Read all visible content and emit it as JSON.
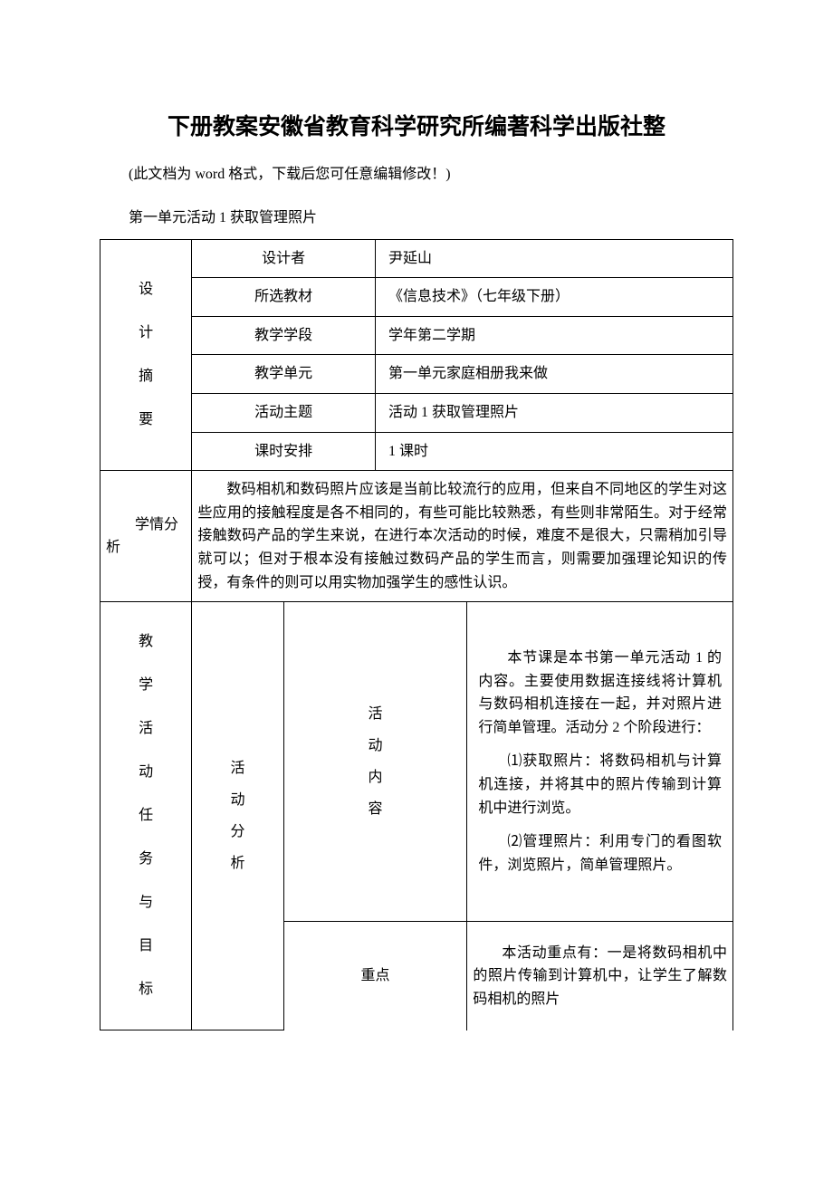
{
  "title": "下册教案安徽省教育科学研究所编著科学出版社整",
  "note_prefix": "(此文档为 ",
  "note_word": "word",
  "note_suffix": " 格式，下载后您可任意编辑修改！)",
  "subtitle": "第一单元活动 1 获取管理照片",
  "summary": {
    "label": "设\n计\n摘\n要",
    "rows": {
      "designer": {
        "label": "设计者",
        "value": "尹延山"
      },
      "textbook": {
        "label": "所选教材",
        "value": "《信息技术》（七年级下册）"
      },
      "stage": {
        "label": "教学学段",
        "value": "学年第二学期"
      },
      "unit": {
        "label": "教学单元",
        "value": "第一单元家庭相册我来做"
      },
      "topic": {
        "label": "活动主题",
        "value": "活动 1 获取管理照片"
      },
      "hours": {
        "label": "课时安排",
        "value": "1 课时"
      }
    }
  },
  "situation": {
    "label": "学情分析",
    "text": "数码相机和数码照片应该是当前比较流行的应用，但来自不同地区的学生对这些应用的接触程度是各不相同的，有些可能比较熟悉，有些则非常陌生。对于经常接触数码产品的学生来说，在进行本次活动的时候，难度不是很大，只需稍加引导就可以；但对于根本没有接触过数码产品的学生而言，则需要加强理论知识的传授，有条件的则可以用实物加强学生的感性认识。"
  },
  "activity": {
    "main_label": "教\n学\n活\n动\n任\n务\n与\n目\n标",
    "analysis_label": "活\n动\n分\n析",
    "content_label": "活\n动\n内\n容",
    "content": {
      "p1": "本节课是本书第一单元活动 1 的内容。主要使用数据连接线将计算机与数码相机连接在一起，并对照片进行简单管理。活动分 2 个阶段进行：",
      "p2": "⑴获取照片：将数码相机与计算机连接，并将其中的照片传输到计算机中进行浏览。",
      "p3": "⑵管理照片：利用专门的看图软件，浏览照片，简单管理照片。"
    },
    "focus_label": "重点",
    "focus_text": "本活动重点有：一是将数码相机中的照片传输到计算机中，让学生了解数码相机的照片"
  },
  "colors": {
    "background": "#ffffff",
    "text": "#000000",
    "border": "#000000"
  },
  "typography": {
    "title_fontsize": 25,
    "body_fontsize": 16,
    "title_family": "SimHei",
    "body_family": "SimSun"
  }
}
